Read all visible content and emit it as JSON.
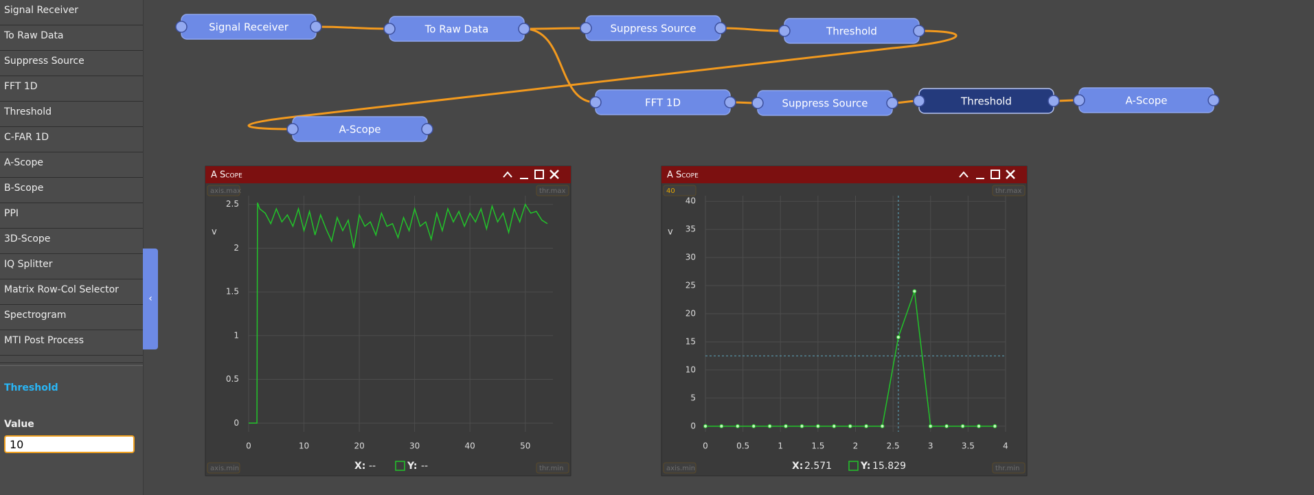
{
  "sidebar": {
    "items": [
      "Signal Receiver",
      "To Raw Data",
      "Suppress Source",
      "FFT 1D",
      "Threshold",
      "C-FAR 1D",
      "A-Scope",
      "B-Scope",
      "PPI",
      "3D-Scope",
      "IQ Splitter",
      "Matrix Row-Col Selector",
      "Spectrogram",
      "MTI Post Process"
    ],
    "selected_node": "Threshold",
    "param_label": "Value",
    "param_value": "10"
  },
  "graph": {
    "nodes": [
      {
        "label": "Signal Receiver"
      },
      {
        "label": "To Raw Data"
      },
      {
        "label": "Suppress Source"
      },
      {
        "label": "Threshold"
      },
      {
        "label": "A-Scope"
      },
      {
        "label": "FFT 1D"
      },
      {
        "label": "Suppress Source"
      },
      {
        "label": "Threshold"
      },
      {
        "label": "A-Scope"
      }
    ],
    "selected": 7
  },
  "chart_data": [
    {
      "type": "line",
      "title": "A Scope",
      "y_label": "v",
      "corner_labels": {
        "top_left": "axis.max",
        "top_right": "thr.max",
        "bottom_left": "axis.min",
        "bottom_right": "thr.min"
      },
      "x": [
        0,
        1.5,
        1.6,
        2,
        3,
        4,
        5,
        6,
        7,
        8,
        9,
        10,
        11,
        12,
        13,
        14,
        15,
        16,
        17,
        18,
        19,
        20,
        21,
        22,
        23,
        24,
        25,
        26,
        27,
        28,
        29,
        30,
        31,
        32,
        33,
        34,
        35,
        36,
        37,
        38,
        39,
        40,
        41,
        42,
        43,
        44,
        45,
        46,
        47,
        48,
        49,
        50,
        51,
        52,
        53,
        54
      ],
      "series": [
        {
          "color": "#22c42a",
          "values": [
            0,
            0,
            2.52,
            2.45,
            2.4,
            2.28,
            2.45,
            2.3,
            2.38,
            2.25,
            2.45,
            2.2,
            2.42,
            2.15,
            2.38,
            2.22,
            2.08,
            2.35,
            2.2,
            2.32,
            2.0,
            2.38,
            2.25,
            2.3,
            2.15,
            2.4,
            2.25,
            2.28,
            2.12,
            2.35,
            2.2,
            2.45,
            2.25,
            2.3,
            2.1,
            2.4,
            2.2,
            2.45,
            2.3,
            2.42,
            2.25,
            2.4,
            2.3,
            2.45,
            2.22,
            2.48,
            2.3,
            2.4,
            2.18,
            2.45,
            2.3,
            2.5,
            2.4,
            2.42,
            2.32,
            2.28
          ]
        }
      ],
      "xlim": [
        0,
        55
      ],
      "ylim": [
        -0.1,
        2.6
      ],
      "xticks": [
        0,
        10,
        20,
        30,
        40,
        50
      ],
      "yticks": [
        0,
        0.5,
        1,
        1.5,
        2,
        2.5
      ],
      "grid": true,
      "markers": false,
      "readout": {
        "x_label": "X:",
        "x_value": "--",
        "y_label": "Y:",
        "y_value": "--"
      }
    },
    {
      "type": "line",
      "title": "A Scope",
      "y_label": "v",
      "corner_labels": {
        "top_left": 40,
        "top_right": "thr.max",
        "bottom_left": "axis.min",
        "bottom_right": "thr.min"
      },
      "x": [
        0,
        0.214,
        0.429,
        0.643,
        0.857,
        1.071,
        1.286,
        1.5,
        1.714,
        1.929,
        2.143,
        2.357,
        2.571,
        2.786,
        3,
        3.214,
        3.429,
        3.643,
        3.857
      ],
      "series": [
        {
          "color": "#22c42a",
          "values": [
            0,
            0,
            0,
            0,
            0,
            0,
            0,
            0,
            0,
            0,
            0,
            0,
            15.829,
            24,
            0,
            0,
            0,
            0,
            0
          ]
        }
      ],
      "xlim": [
        0,
        4
      ],
      "ylim": [
        -1,
        41
      ],
      "xticks": [
        0,
        0.5,
        1,
        1.5,
        2,
        2.5,
        3,
        3.5,
        4
      ],
      "yticks": [
        0,
        5,
        10,
        15,
        20,
        25,
        30,
        35,
        40
      ],
      "grid": true,
      "markers": true,
      "cursor": {
        "x": 2.571,
        "y": 12.5
      },
      "readout": {
        "x_label": "X:",
        "x_value": 2.571,
        "y_label": "Y:",
        "y_value": 15.829
      }
    }
  ]
}
